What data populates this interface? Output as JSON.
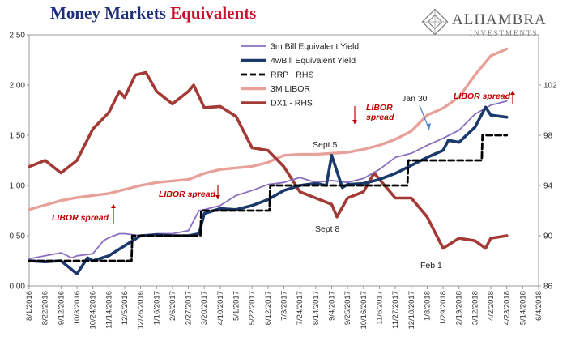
{
  "header": {
    "title_part1": "Money Markets",
    "title_part2": "Equivalents",
    "logo_name": "ALHAMBRA",
    "logo_sub": "INVESTMENTS"
  },
  "colors": {
    "bill3m": "#8a6fbf",
    "bill4w": "#1b3a6b",
    "rrp": "#000000",
    "libor": "#e8a19a",
    "dxy": "#a33a35",
    "annot_red": "#c00000",
    "annot_blue": "#4a7fc1",
    "title_blue": "#1f2e7a",
    "title_red": "#c8102e"
  },
  "chart_data": {
    "type": "line",
    "x_ticks": [
      "8/1/2016",
      "8/22/2016",
      "9/12/2016",
      "10/3/2016",
      "10/24/2016",
      "11/14/2016",
      "12/5/2016",
      "12/26/2016",
      "1/16/2017",
      "2/6/2017",
      "2/27/2017",
      "3/20/2017",
      "4/10/2017",
      "5/1/2017",
      "5/22/2017",
      "6/12/2017",
      "7/3/2017",
      "7/24/2017",
      "8/14/2017",
      "9/4/2017",
      "9/25/2017",
      "10/16/2017",
      "11/6/2017",
      "11/27/2017",
      "12/18/2017",
      "1/8/2018",
      "1/29/2018",
      "2/19/2018",
      "3/12/2018",
      "4/2/2018",
      "4/23/2018",
      "5/14/2018",
      "6/4/2018"
    ],
    "y_left": {
      "ticks": [
        "0.00",
        "0.50",
        "1.00",
        "1.50",
        "2.00",
        "2.50"
      ],
      "range": [
        0,
        2.5
      ]
    },
    "y_right": {
      "ticks": [
        "86",
        "90",
        "94",
        "98",
        "102"
      ],
      "range": [
        86,
        106
      ]
    },
    "legend_position": "top-center",
    "series": [
      {
        "name": "3m Bill Equivalent Yield",
        "axis": "left",
        "x": [
          "8/1/2016",
          "8/22/2016",
          "9/12/2016",
          "9/26/2016",
          "10/3/2016",
          "10/24/2016",
          "11/7/2016",
          "11/14/2016",
          "11/28/2016",
          "12/5/2016",
          "12/26/2016",
          "1/16/2017",
          "2/6/2017",
          "2/27/2017",
          "3/13/2017",
          "3/20/2017",
          "4/10/2017",
          "5/1/2017",
          "5/22/2017",
          "6/12/2017",
          "7/3/2017",
          "7/24/2017",
          "8/14/2017",
          "9/4/2017",
          "9/25/2017",
          "10/16/2017",
          "11/6/2017",
          "11/27/2017",
          "12/18/2017",
          "1/8/2018",
          "1/29/2018",
          "2/19/2018",
          "3/12/2018",
          "4/2/2018",
          "4/23/2018"
        ],
        "y": [
          0.27,
          0.3,
          0.33,
          0.28,
          0.3,
          0.32,
          0.45,
          0.48,
          0.52,
          0.52,
          0.5,
          0.52,
          0.52,
          0.55,
          0.75,
          0.76,
          0.8,
          0.9,
          0.95,
          1.01,
          1.03,
          1.08,
          1.03,
          1.05,
          1.03,
          1.07,
          1.16,
          1.28,
          1.32,
          1.4,
          1.47,
          1.55,
          1.71,
          1.8,
          1.84
        ]
      },
      {
        "name": "4wBill Equivalent Yield",
        "axis": "left",
        "x": [
          "8/1/2016",
          "8/22/2016",
          "9/12/2016",
          "10/3/2016",
          "10/17/2016",
          "10/24/2016",
          "11/14/2016",
          "12/5/2016",
          "12/26/2016",
          "1/16/2017",
          "2/6/2017",
          "2/27/2017",
          "3/13/2017",
          "3/20/2017",
          "4/10/2017",
          "5/1/2017",
          "5/22/2017",
          "6/12/2017",
          "7/3/2017",
          "7/24/2017",
          "8/14/2017",
          "8/28/2017",
          "9/4/2017",
          "9/18/2017",
          "9/25/2017",
          "10/16/2017",
          "11/6/2017",
          "11/27/2017",
          "12/18/2017",
          "1/8/2018",
          "1/29/2018",
          "2/5/2018",
          "2/19/2018",
          "3/12/2018",
          "3/26/2018",
          "4/2/2018",
          "4/23/2018"
        ],
        "y": [
          0.25,
          0.24,
          0.25,
          0.12,
          0.28,
          0.25,
          0.3,
          0.4,
          0.5,
          0.51,
          0.5,
          0.5,
          0.52,
          0.72,
          0.77,
          0.76,
          0.8,
          0.86,
          0.95,
          1.0,
          1.02,
          1.0,
          1.3,
          0.98,
          1.01,
          1.02,
          1.06,
          1.12,
          1.2,
          1.28,
          1.35,
          1.45,
          1.43,
          1.58,
          1.78,
          1.7,
          1.68
        ]
      },
      {
        "name": "RRP - RHS",
        "axis": "left",
        "x": [
          "8/1/2016",
          "12/14/2016",
          "12/15/2016",
          "3/15/2017",
          "3/16/2017",
          "6/14/2017",
          "6/15/2017",
          "12/13/2017",
          "12/14/2017",
          "3/21/2018",
          "3/22/2018",
          "4/23/2018"
        ],
        "y": [
          0.25,
          0.25,
          0.5,
          0.5,
          0.75,
          0.75,
          1.0,
          1.0,
          1.25,
          1.25,
          1.5,
          1.5
        ]
      },
      {
        "name": "3M LIBOR",
        "axis": "left",
        "x": [
          "8/1/2016",
          "9/12/2016",
          "10/3/2016",
          "11/14/2016",
          "12/26/2016",
          "1/16/2017",
          "2/27/2017",
          "3/20/2017",
          "4/10/2017",
          "5/22/2017",
          "6/12/2017",
          "7/3/2017",
          "7/24/2017",
          "8/14/2017",
          "9/25/2017",
          "10/16/2017",
          "11/6/2017",
          "11/27/2017",
          "12/18/2017",
          "1/8/2018",
          "1/29/2018",
          "2/19/2018",
          "3/12/2018",
          "4/2/2018",
          "4/23/2018"
        ],
        "y": [
          0.76,
          0.85,
          0.88,
          0.92,
          1.0,
          1.03,
          1.06,
          1.12,
          1.16,
          1.19,
          1.23,
          1.3,
          1.31,
          1.31,
          1.33,
          1.36,
          1.4,
          1.46,
          1.54,
          1.7,
          1.77,
          1.88,
          2.1,
          2.29,
          2.36
        ]
      },
      {
        "name": "DX1 - RHS",
        "axis": "right",
        "x": [
          "8/1/2016",
          "8/22/2016",
          "9/12/2016",
          "10/3/2016",
          "10/24/2016",
          "11/14/2016",
          "11/28/2016",
          "12/5/2016",
          "12/19/2016",
          "1/2/2017",
          "1/16/2017",
          "2/6/2017",
          "2/27/2017",
          "3/6/2017",
          "3/20/2017",
          "4/10/2017",
          "5/1/2017",
          "5/22/2017",
          "6/12/2017",
          "7/3/2017",
          "7/24/2017",
          "8/14/2017",
          "9/4/2017",
          "9/11/2017",
          "9/25/2017",
          "10/16/2017",
          "10/30/2017",
          "11/6/2017",
          "11/27/2017",
          "12/18/2017",
          "1/8/2018",
          "1/29/2018",
          "2/19/2018",
          "3/12/2018",
          "3/26/2018",
          "4/2/2018",
          "4/23/2018"
        ],
        "y": [
          95.5,
          96.0,
          95.0,
          96.0,
          98.5,
          99.8,
          101.5,
          101.0,
          102.8,
          103.0,
          101.5,
          100.5,
          101.5,
          102.0,
          100.2,
          100.3,
          99.5,
          97.0,
          96.8,
          95.5,
          93.5,
          93.0,
          92.5,
          91.5,
          93.0,
          93.5,
          95.0,
          94.5,
          93.0,
          93.0,
          91.5,
          89.0,
          89.8,
          89.6,
          89.0,
          89.8,
          90.0
        ]
      }
    ],
    "annotations": [
      {
        "text": "LIBOR spread",
        "arrow": "up"
      },
      {
        "text": "LIBOR spread",
        "arrow": "down"
      },
      {
        "text": "LIBOR\nspread",
        "arrow": "down"
      },
      {
        "text": "LIBOR spread",
        "arrow": "up"
      },
      {
        "text": "Sept 5"
      },
      {
        "text": "Sept 8"
      },
      {
        "text": "Jan 30"
      },
      {
        "text": "Feb 1"
      }
    ]
  }
}
